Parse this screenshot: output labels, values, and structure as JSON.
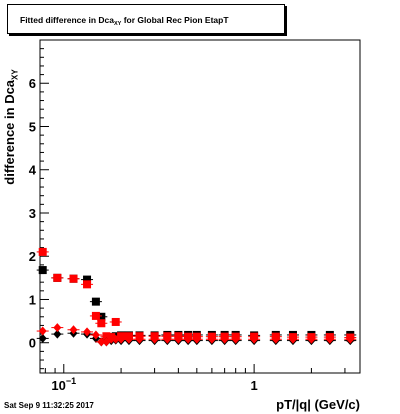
{
  "header": {
    "title_main": "Fitted difference in Dca",
    "title_sub": "XY",
    "title_tail": " for Global Rec Pion EtapT"
  },
  "footer": {
    "timestamp": "Sat Sep  9 11:32:25 2017"
  },
  "chart_data": {
    "type": "scatter",
    "xlabel": "pT/|q| (GeV/c)",
    "ylabel_main": "difference in Dca",
    "ylabel_sub": "XY",
    "x_scale": "log",
    "xlim": [
      0.075,
      3.6
    ],
    "ylim": [
      -0.7,
      7.0
    ],
    "y_ticks": [
      0,
      1,
      2,
      3,
      4,
      5,
      6
    ],
    "x_tick_labels": [
      {
        "value": 0.1,
        "base": "10",
        "exp": "−1"
      },
      {
        "value": 1,
        "base": "1",
        "exp": ""
      }
    ],
    "grid": false,
    "legend": "none",
    "series": [
      {
        "marker": "square",
        "color": "#000000",
        "x": [
          0.0775,
          0.0925,
          0.1125,
          0.1325,
          0.1475,
          0.1575,
          0.1675,
          0.1775,
          0.1875,
          0.2,
          0.22,
          0.25,
          0.3,
          0.35,
          0.4,
          0.45,
          0.5,
          0.6,
          0.7,
          0.8,
          1.0,
          1.3,
          1.6,
          2.0,
          2.5,
          3.2
        ],
        "y": [
          1.68,
          1.5,
          1.48,
          1.46,
          0.95,
          0.6,
          0.1,
          0.13,
          0.15,
          0.17,
          0.17,
          0.17,
          0.17,
          0.18,
          0.18,
          0.18,
          0.18,
          0.18,
          0.18,
          0.18,
          0.17,
          0.18,
          0.18,
          0.18,
          0.18,
          0.18
        ]
      },
      {
        "marker": "square",
        "color": "#ff0000",
        "x": [
          0.0775,
          0.0925,
          0.1125,
          0.1325,
          0.1475,
          0.1575,
          0.1675,
          0.1775,
          0.1875,
          0.2,
          0.22,
          0.25,
          0.3,
          0.35,
          0.4,
          0.45,
          0.5,
          0.6,
          0.7,
          0.8,
          1.0,
          1.3,
          1.6,
          2.0,
          2.5,
          3.2
        ],
        "y": [
          2.1,
          1.5,
          1.48,
          1.35,
          0.62,
          0.45,
          0.15,
          0.13,
          0.48,
          0.15,
          0.15,
          0.15,
          0.15,
          0.15,
          0.15,
          0.14,
          0.14,
          0.14,
          0.14,
          0.14,
          0.14,
          0.14,
          0.13,
          0.13,
          0.13,
          0.12
        ]
      },
      {
        "marker": "diamond",
        "color": "#000000",
        "x": [
          0.0775,
          0.0925,
          0.1125,
          0.1325,
          0.1475,
          0.1575,
          0.1675,
          0.1775,
          0.1875,
          0.2,
          0.22,
          0.25,
          0.3,
          0.35,
          0.4,
          0.45,
          0.5,
          0.6,
          0.7,
          0.8,
          1.0,
          1.3,
          1.6,
          2.0,
          2.5,
          3.2
        ],
        "y": [
          0.1,
          0.2,
          0.22,
          0.2,
          0.1,
          0.02,
          0.02,
          0.05,
          0.06,
          0.05,
          0.05,
          0.05,
          0.05,
          0.05,
          0.05,
          0.05,
          0.05,
          0.05,
          0.05,
          0.05,
          0.05,
          0.05,
          0.05,
          0.05,
          0.05,
          0.05
        ]
      },
      {
        "marker": "diamond",
        "color": "#ff0000",
        "x": [
          0.0775,
          0.0925,
          0.1125,
          0.1325,
          0.1475,
          0.1575,
          0.1675,
          0.1775,
          0.1875,
          0.2,
          0.22,
          0.25,
          0.3,
          0.35,
          0.4,
          0.45,
          0.5,
          0.6,
          0.7,
          0.8,
          1.0,
          1.3,
          1.6,
          2.0,
          2.5,
          3.2
        ],
        "y": [
          0.27,
          0.35,
          0.3,
          0.25,
          0.18,
          0.02,
          0.02,
          0.08,
          0.08,
          0.08,
          0.08,
          0.08,
          0.08,
          0.08,
          0.08,
          0.08,
          0.08,
          0.08,
          0.08,
          0.08,
          0.08,
          0.08,
          0.08,
          0.08,
          0.08,
          0.08
        ]
      }
    ]
  }
}
